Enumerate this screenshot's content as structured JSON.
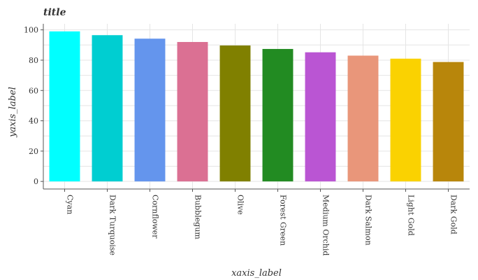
{
  "chart_data": {
    "type": "bar",
    "title": "title",
    "xlabel": "xaxis_label",
    "ylabel": "yaxis_label",
    "categories": [
      "Cyan",
      "Dark Turquoise",
      "Cornflower",
      "Bubblegum",
      "Olive",
      "Forest Green",
      "Medium Orchid",
      "Dark Salmon",
      "Light Gold",
      "Dark Gold"
    ],
    "values": [
      99,
      96.5,
      94.2,
      92,
      89.7,
      87.4,
      85.2,
      83,
      81,
      78.8
    ],
    "colors": [
      "#00ffff",
      "#00ced1",
      "#6495ed",
      "#db7093",
      "#808000",
      "#228b22",
      "#ba55d3",
      "#e9967a",
      "#fad201",
      "#b8860b"
    ],
    "ylim": [
      0,
      100
    ],
    "yticks": [
      0,
      20,
      40,
      60,
      80,
      100
    ],
    "grid": true
  }
}
